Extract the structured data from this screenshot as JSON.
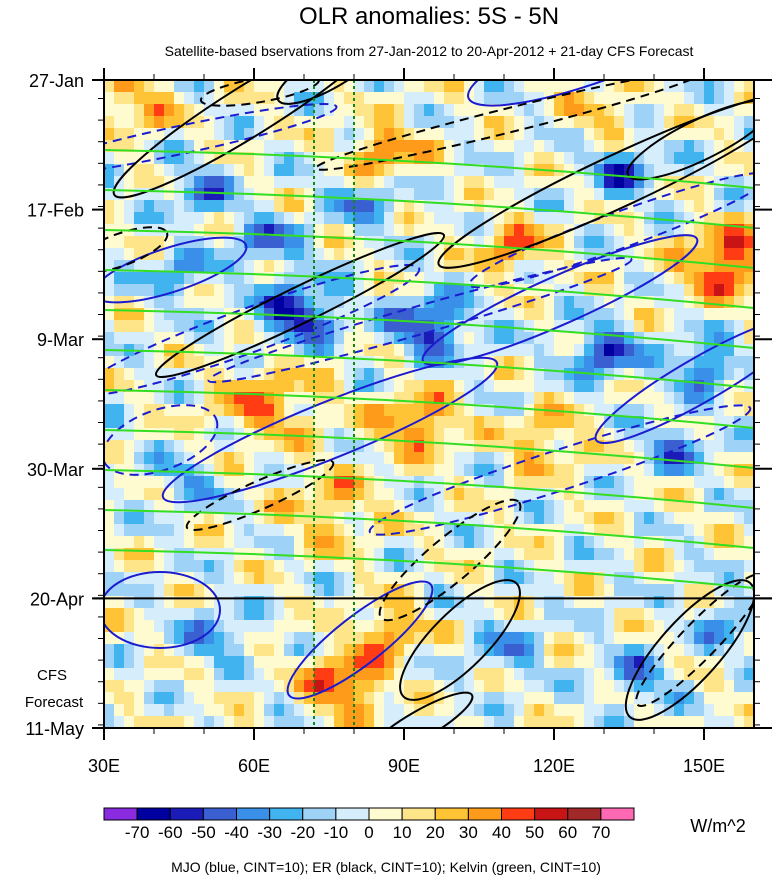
{
  "chart_data": {
    "type": "heatmap",
    "title": "OLR anomalies: 5S - 5N",
    "subtitle": "Satellite-based bservations from 27-Jan-2012 to 20-Apr-2012 + 21-day CFS Forecast",
    "x_ticks": [
      {
        "value": 30,
        "label": "30E"
      },
      {
        "value": 60,
        "label": "60E"
      },
      {
        "value": 90,
        "label": "90E"
      },
      {
        "value": 120,
        "label": "120E"
      },
      {
        "value": 150,
        "label": "150E"
      }
    ],
    "xlim": [
      30,
      160
    ],
    "y_ticks": [
      {
        "day": 0,
        "label": "27-Jan"
      },
      {
        "day": 21,
        "label": "17-Feb"
      },
      {
        "day": 42,
        "label": "9-Mar"
      },
      {
        "day": 63,
        "label": "30-Mar"
      },
      {
        "day": 84,
        "label": "20-Apr"
      },
      {
        "day": 105,
        "label": "11-May"
      }
    ],
    "ylim_days": [
      0,
      105
    ],
    "forecast_start_day": 84,
    "forecast_label_line1": "CFS",
    "forecast_label_line2": "Forecast",
    "reference_lines_lon": [
      72,
      80
    ],
    "colorbar": {
      "levels": [
        "-70",
        "-60",
        "-50",
        "-40",
        "-30",
        "-20",
        "-10",
        "0",
        "10",
        "20",
        "30",
        "40",
        "50",
        "60",
        "70"
      ],
      "colors": [
        "#8a2be2",
        "#0000a0",
        "#1b1bb8",
        "#3a5fd0",
        "#3a8fe8",
        "#41b4f0",
        "#9fd2f7",
        "#d6eefb",
        "#fffbd0",
        "#ffe58a",
        "#ffc436",
        "#ff9b1a",
        "#ff3c14",
        "#c81414",
        "#a02828",
        "#ff69b4"
      ],
      "units": "W/m^2"
    },
    "footer": "MJO (blue, CINT=10); ER (black, CINT=10); Kelvin (green, CINT=10)"
  }
}
